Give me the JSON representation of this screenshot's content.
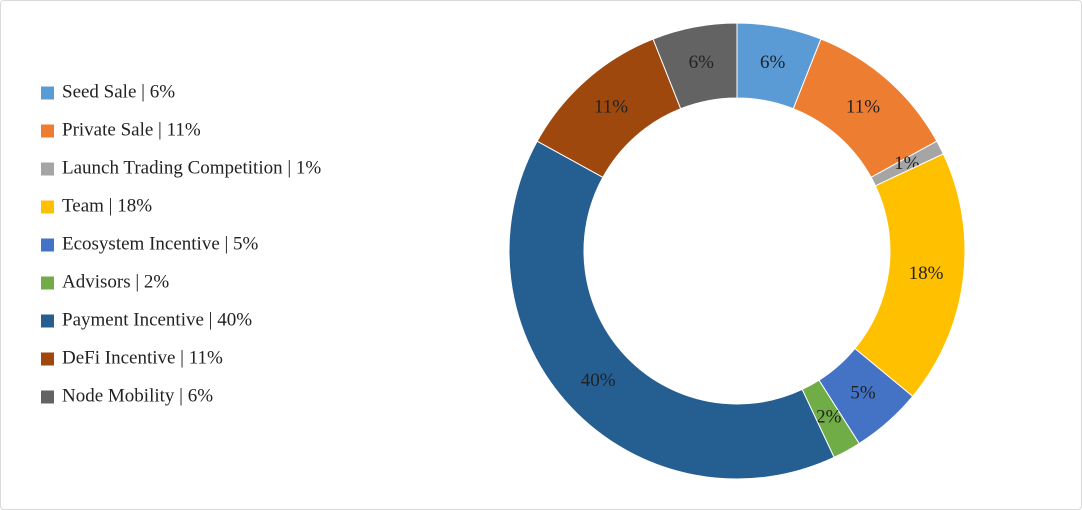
{
  "chart_data": {
    "type": "donut",
    "categories": [
      "Seed Sale | 6%",
      "Private Sale | 11%",
      "Launch Trading Competition | 1%",
      "Team | 18%",
      "Ecosystem Incentive | 5%",
      "Advisors | 2%",
      "Payment Incentive | 40%",
      "DeFi Incentive | 11%",
      "Node Mobility | 6%"
    ],
    "values": [
      6,
      11,
      1,
      18,
      5,
      2,
      40,
      11,
      6
    ],
    "value_labels": [
      "6%",
      "11%",
      "1%",
      "18%",
      "5%",
      "2%",
      "40%",
      "11%",
      "6%"
    ],
    "colors": [
      "#5b9bd5",
      "#ed7d31",
      "#a5a5a5",
      "#ffc000",
      "#4472c4",
      "#70ad47",
      "#255e91",
      "#9e480e",
      "#636363"
    ],
    "legend": "left"
  }
}
